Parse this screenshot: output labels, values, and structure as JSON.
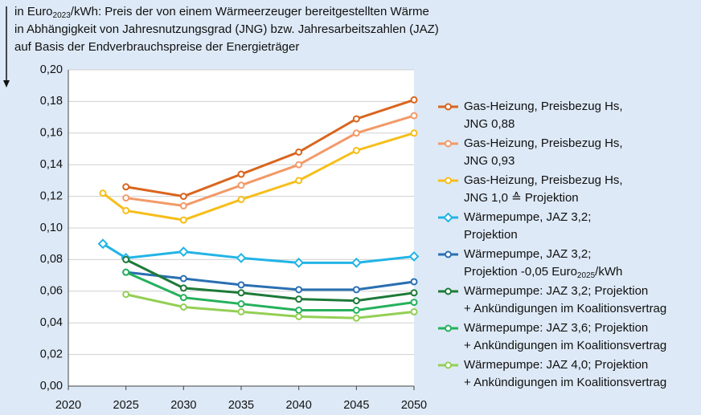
{
  "chart_data": {
    "type": "line",
    "title_lines": [
      [
        {
          "text": "in Euro"
        },
        {
          "text": "2023",
          "sub": true
        },
        {
          "text": "/kWh: Preis der von einem Wärmeerzeuger bereitgestellten Wärme"
        }
      ],
      [
        {
          "text": "in Abhängigkeit von Jahresnutzungsgrad (JNG) bzw. Jahresarbeitszahlen (JAZ)"
        }
      ],
      [
        {
          "text": "auf Basis der Endverbrauchspreise der Energieträger"
        }
      ]
    ],
    "x": [
      2023,
      2025,
      2030,
      2035,
      2040,
      2045,
      2050
    ],
    "xlim": [
      2020,
      2050
    ],
    "xticks": [
      2020,
      2025,
      2030,
      2035,
      2040,
      2045,
      2050
    ],
    "ylim": [
      0,
      0.2
    ],
    "yticks": [
      {
        "value": 0,
        "label": "0,00"
      },
      {
        "value": 0.02,
        "label": "0,02"
      },
      {
        "value": 0.04,
        "label": "0,04"
      },
      {
        "value": 0.06,
        "label": "0,06"
      },
      {
        "value": 0.08,
        "label": "0,08"
      },
      {
        "value": 0.1,
        "label": "0,10"
      },
      {
        "value": 0.12,
        "label": "0,12"
      },
      {
        "value": 0.14,
        "label": "0,14"
      },
      {
        "value": 0.16,
        "label": "0,16"
      },
      {
        "value": 0.18,
        "label": "0,18"
      },
      {
        "value": 0.2,
        "label": "0,20"
      }
    ],
    "grid": true,
    "legend": "right",
    "series": [
      {
        "name": [
          "Gas-Heizung, Preisbezug Hs,",
          "JNG 0,88"
        ],
        "color": "#d9651e",
        "marker": "circle",
        "values": [
          null,
          0.126,
          0.12,
          0.134,
          0.148,
          0.169,
          0.181
        ]
      },
      {
        "name": [
          "Gas-Heizung, Preisbezug Hs,",
          "JNG 0,93"
        ],
        "color": "#f29a68",
        "marker": "circle",
        "values": [
          null,
          0.119,
          0.114,
          0.127,
          0.14,
          0.16,
          0.171
        ]
      },
      {
        "name": [
          "Gas-Heizung, Preisbezug Hs,",
          "JNG 1,0 ≙ Projektion"
        ],
        "color": "#f6be1a",
        "marker": "circle",
        "values": [
          0.122,
          0.111,
          0.105,
          0.118,
          0.13,
          0.149,
          0.16
        ]
      },
      {
        "name": [
          "Wärmepumpe, JAZ 3,2;",
          "Projektion"
        ],
        "color": "#22b4e6",
        "marker": "diamond",
        "values": [
          0.09,
          0.081,
          0.085,
          0.081,
          0.078,
          0.078,
          0.082
        ]
      },
      {
        "name": [
          "Wärmepumpe, JAZ 3,2;",
          [
            {
              "text": "Projektion -0,05 Euro"
            },
            {
              "text": "2025",
              "sub": true
            },
            {
              "text": "/kWh"
            }
          ]
        ],
        "color": "#2a6fb2",
        "marker": "circle",
        "values": [
          null,
          0.072,
          0.068,
          0.064,
          0.061,
          0.061,
          0.066
        ]
      },
      {
        "name": [
          "Wärmepumpe: JAZ 3,2; Projektion",
          "+ Ankündigungen im Koalitionsvertrag"
        ],
        "color": "#1d7a38",
        "marker": "circle",
        "values": [
          null,
          0.08,
          0.062,
          0.059,
          0.055,
          0.054,
          0.059
        ]
      },
      {
        "name": [
          "Wärmepumpe: JAZ 3,6; Projektion",
          "+ Ankündigungen im Koalitionsvertrag"
        ],
        "color": "#25b15c",
        "marker": "circle",
        "values": [
          null,
          0.072,
          0.056,
          0.052,
          0.048,
          0.048,
          0.053
        ]
      },
      {
        "name": [
          "Wärmepumpe: JAZ 4,0; Projektion",
          "+ Ankündigungen im Koalitionsvertrag"
        ],
        "color": "#94cf55",
        "marker": "circle",
        "values": [
          null,
          0.058,
          0.05,
          0.047,
          0.044,
          0.043,
          0.047
        ]
      }
    ]
  }
}
